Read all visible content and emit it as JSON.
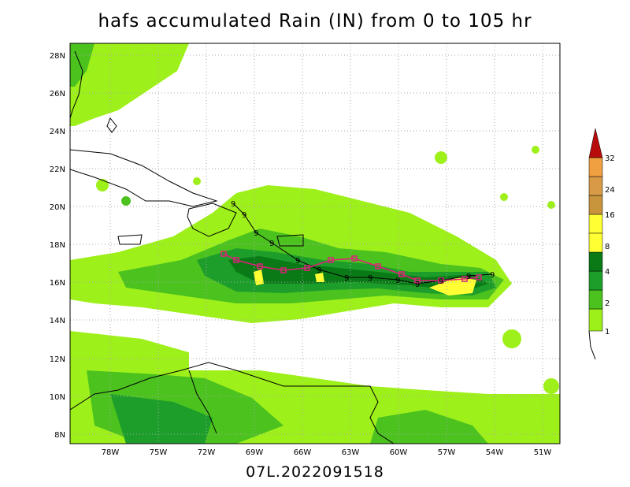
{
  "title": "hafs accumulated Rain (IN) from 0 to 105 hr",
  "footer": "07L.2022091518",
  "lat_labels": [
    "28N",
    "26N",
    "24N",
    "22N",
    "20N",
    "18N",
    "16N",
    "14N",
    "12N",
    "10N",
    "8N"
  ],
  "lon_labels": [
    "78W",
    "75W",
    "72W",
    "69W",
    "66W",
    "63W",
    "60W",
    "57W",
    "54W",
    "51W"
  ],
  "colorbar": {
    "labels": [
      "1",
      "2",
      "4",
      "8",
      "16",
      "24",
      "32"
    ],
    "colors": [
      "#9ef01a",
      "#4cc21f",
      "#1d9e2a",
      "#0a7a17",
      "#ffff33",
      "#c8943c",
      "#f0a040",
      "#b80b0b"
    ]
  },
  "track_symbol": "9",
  "colors": {
    "grid": "#aaaaaa",
    "track_marker": "#e0207a"
  }
}
